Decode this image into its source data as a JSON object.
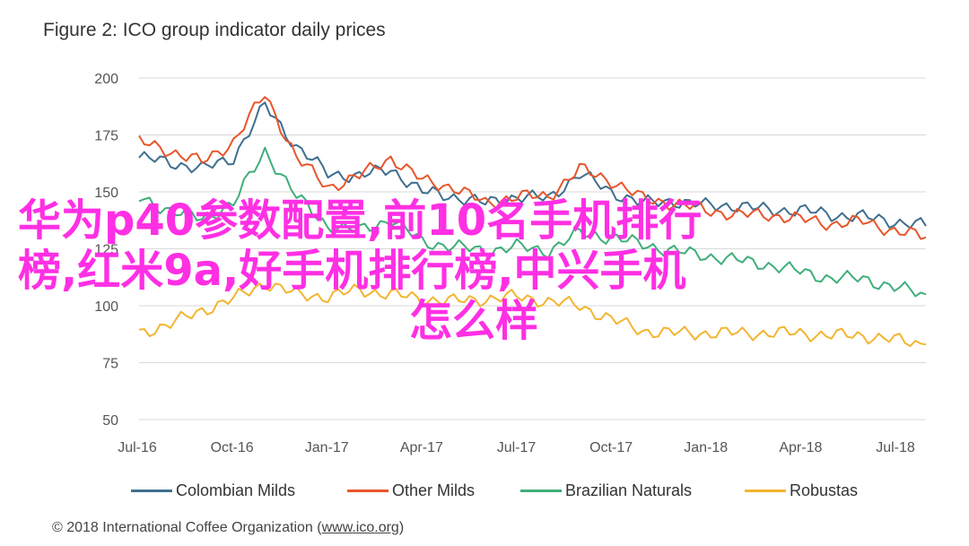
{
  "figure_title": "Figure 2: ICO group indicator daily prices",
  "overlay_text": {
    "line1": "华为p40参数配置,前10名手机排行",
    "line2": "榜,红米9a,好手机排行榜,中兴手机",
    "line3": "怎么样"
  },
  "footer": {
    "text": "© 2018 International Coffee Organization (",
    "link": "www.ico.org",
    "suffix": ")"
  },
  "colors": {
    "colombian": "#3f6f8f",
    "other": "#e8552b",
    "brazilian": "#3fae7a",
    "robustas": "#f2b531",
    "grid": "#d9d9d9",
    "overlay": "#ff2fe4"
  },
  "chart_data": {
    "type": "line",
    "title": "Figure 2: ICO group indicator daily prices",
    "xlabel": "",
    "ylabel": "",
    "ylim": [
      50,
      200
    ],
    "yticks": [
      50,
      75,
      100,
      125,
      150,
      175,
      200
    ],
    "xticks": [
      "Jul-16",
      "Oct-16",
      "Jan-17",
      "Apr-17",
      "Jul-17",
      "Oct-17",
      "Jan-18",
      "Apr-18",
      "Jul-18"
    ],
    "grid": true,
    "legend_position": "bottom",
    "x": [
      "Jul-16",
      "Aug-16",
      "Sep-16",
      "Oct-16",
      "Nov-16",
      "Dec-16",
      "Jan-17",
      "Feb-17",
      "Mar-17",
      "Apr-17",
      "May-17",
      "Jun-17",
      "Jul-17",
      "Aug-17",
      "Sep-17",
      "Oct-17",
      "Nov-17",
      "Dec-17",
      "Jan-18",
      "Feb-18",
      "Mar-18",
      "Apr-18",
      "May-18",
      "Jun-18",
      "Jul-18",
      "Aug-18"
    ],
    "series": [
      {
        "name": "Colombian Milds",
        "color": "#3f6f8f",
        "values": [
          165,
          163,
          160,
          165,
          188,
          170,
          158,
          157,
          160,
          150,
          148,
          145,
          148,
          147,
          158,
          150,
          145,
          146,
          144,
          144,
          142,
          142,
          140,
          139,
          137,
          135
        ]
      },
      {
        "name": "Other Milds",
        "color": "#e8552b",
        "values": [
          172,
          168,
          163,
          172,
          193,
          165,
          152,
          157,
          165,
          155,
          152,
          145,
          148,
          148,
          160,
          155,
          147,
          145,
          142,
          140,
          140,
          138,
          136,
          137,
          133,
          130
        ]
      },
      {
        "name": "Brazilian Naturals",
        "color": "#3fae7a",
        "values": [
          147,
          142,
          138,
          145,
          168,
          148,
          135,
          133,
          138,
          128,
          126,
          124,
          126,
          124,
          132,
          130,
          127,
          124,
          122,
          120,
          118,
          115,
          112,
          112,
          108,
          105
        ]
      },
      {
        "name": "Robustas",
        "color": "#f2b531",
        "values": [
          88,
          92,
          98,
          103,
          110,
          105,
          104,
          107,
          105,
          103,
          102,
          103,
          104,
          102,
          100,
          94,
          89,
          88,
          88,
          88,
          88,
          88,
          87,
          87,
          85,
          83
        ]
      }
    ]
  }
}
